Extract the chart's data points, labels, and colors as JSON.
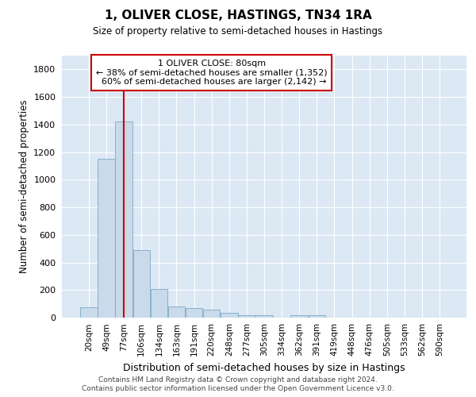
{
  "title": "1, OLIVER CLOSE, HASTINGS, TN34 1RA",
  "subtitle": "Size of property relative to semi-detached houses in Hastings",
  "xlabel": "Distribution of semi-detached houses by size in Hastings",
  "ylabel": "Number of semi-detached properties",
  "footer_line1": "Contains HM Land Registry data © Crown copyright and database right 2024.",
  "footer_line2": "Contains public sector information licensed under the Open Government Licence v3.0.",
  "bar_color": "#c9daea",
  "bar_edge_color": "#7aaac8",
  "grid_color": "#c0cfe0",
  "background_color": "#dce8f4",
  "annotation_box_color": "#cc0000",
  "vline_color": "#cc0000",
  "property_label": "1 OLIVER CLOSE: 80sqm",
  "pct_smaller": 38,
  "count_smaller": 1352,
  "pct_larger": 60,
  "count_larger": 2142,
  "categories": [
    "20sqm",
    "49sqm",
    "77sqm",
    "106sqm",
    "134sqm",
    "163sqm",
    "191sqm",
    "220sqm",
    "248sqm",
    "277sqm",
    "305sqm",
    "334sqm",
    "362sqm",
    "391sqm",
    "419sqm",
    "448sqm",
    "476sqm",
    "505sqm",
    "533sqm",
    "562sqm",
    "590sqm"
  ],
  "values": [
    75,
    1150,
    1420,
    490,
    210,
    80,
    70,
    55,
    35,
    20,
    15,
    0,
    15,
    15,
    0,
    0,
    0,
    0,
    0,
    0,
    0
  ],
  "ylim": [
    0,
    1900
  ],
  "yticks": [
    0,
    200,
    400,
    600,
    800,
    1000,
    1200,
    1400,
    1600,
    1800
  ],
  "vline_pos": 2.0
}
